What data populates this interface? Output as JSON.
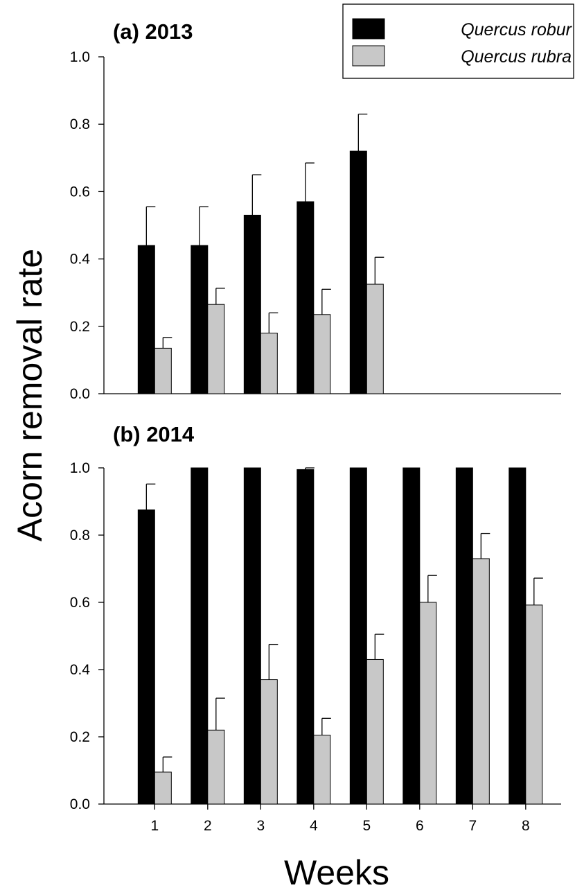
{
  "colors": {
    "Quercus robur": "#000000",
    "Quercus rubra": "#c8c8c8"
  },
  "chart_data": [
    {
      "type": "bar",
      "title": "(a) 2013",
      "xlabel": "",
      "ylabel": "Acorn removal rate",
      "ylim": [
        0,
        1.0
      ],
      "yticks": [
        "0.0",
        "0.2",
        "0.4",
        "0.6",
        "0.8",
        "1.0"
      ],
      "categories": [
        "1",
        "2",
        "3",
        "4",
        "5",
        "6",
        "7",
        "8"
      ],
      "show_xtick_labels": false,
      "legend": {
        "placement": "top-right",
        "entries": [
          "Quercus robur",
          "Quercus rubra"
        ]
      },
      "series": [
        {
          "name": "Quercus robur",
          "values": [
            0.44,
            0.44,
            0.53,
            0.57,
            0.72,
            null,
            null,
            null
          ],
          "errors": [
            0.115,
            0.115,
            0.12,
            0.115,
            0.11,
            null,
            null,
            null
          ]
        },
        {
          "name": "Quercus rubra",
          "values": [
            0.135,
            0.265,
            0.18,
            0.235,
            0.325,
            null,
            null,
            null
          ],
          "errors": [
            0.032,
            0.048,
            0.06,
            0.075,
            0.08,
            null,
            null,
            null
          ]
        }
      ]
    },
    {
      "type": "bar",
      "title": "(b) 2014",
      "xlabel": "Weeks",
      "ylabel": "Acorn removal rate",
      "ylim": [
        0,
        1.0
      ],
      "yticks": [
        "0.0",
        "0.2",
        "0.4",
        "0.6",
        "0.8",
        "1.0"
      ],
      "categories": [
        "1",
        "2",
        "3",
        "4",
        "5",
        "6",
        "7",
        "8"
      ],
      "show_xtick_labels": true,
      "series": [
        {
          "name": "Quercus robur",
          "values": [
            0.875,
            1.0,
            1.0,
            0.995,
            1.0,
            1.0,
            1.0,
            1.0
          ],
          "errors": [
            0.077,
            0,
            0,
            0.005,
            0,
            0,
            0,
            0
          ]
        },
        {
          "name": "Quercus rubra",
          "values": [
            0.095,
            0.22,
            0.37,
            0.205,
            0.43,
            0.6,
            0.73,
            0.592
          ],
          "errors": [
            0.045,
            0.095,
            0.105,
            0.05,
            0.075,
            0.08,
            0.075,
            0.08
          ]
        }
      ]
    }
  ]
}
